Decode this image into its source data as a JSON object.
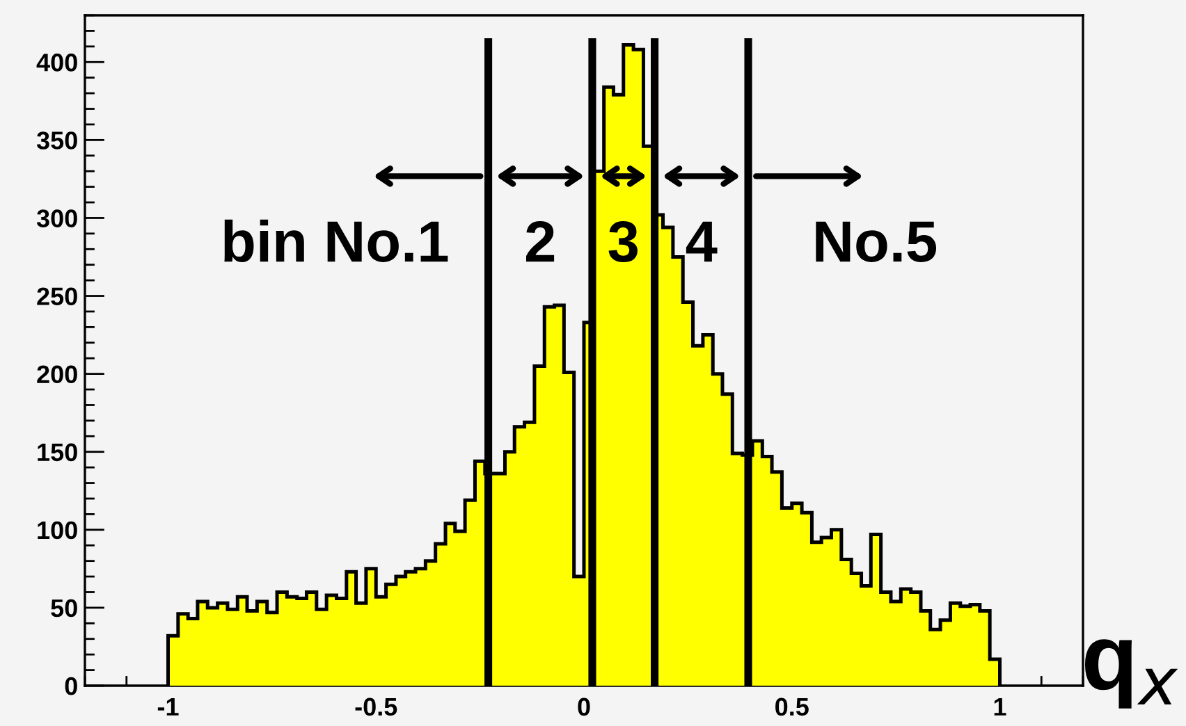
{
  "chart_data": {
    "type": "histogram",
    "xlabel": "q$_{x}$",
    "bins": [
      -1,
      -0.976,
      -0.952,
      -0.929,
      -0.905,
      -0.881,
      -0.857,
      -0.833,
      -0.81,
      -0.786,
      -0.762,
      -0.738,
      -0.714,
      -0.69,
      -0.667,
      -0.643,
      -0.619,
      -0.595,
      -0.571,
      -0.548,
      -0.524,
      -0.5,
      -0.476,
      -0.452,
      -0.429,
      -0.405,
      -0.381,
      -0.357,
      -0.333,
      -0.31,
      -0.286,
      -0.262,
      -0.238,
      -0.214,
      -0.19,
      -0.167,
      -0.143,
      -0.119,
      -0.095,
      -0.071,
      -0.048,
      -0.024,
      0,
      0.024,
      0.048,
      0.071,
      0.095,
      0.119,
      0.143,
      0.167,
      0.19,
      0.214,
      0.238,
      0.262,
      0.286,
      0.31,
      0.333,
      0.357,
      0.381,
      0.405,
      0.429,
      0.452,
      0.476,
      0.5,
      0.524,
      0.548,
      0.571,
      0.595,
      0.619,
      0.643,
      0.667,
      0.69,
      0.714,
      0.738,
      0.762,
      0.786,
      0.81,
      0.833,
      0.857,
      0.881,
      0.905,
      0.929,
      0.952,
      0.976,
      1
    ],
    "values": [
      32,
      46,
      43,
      54,
      50,
      53,
      49,
      57,
      48,
      54,
      47,
      60,
      57,
      56,
      60,
      49,
      58,
      56,
      73,
      53,
      75,
      57,
      65,
      70,
      73,
      75,
      80,
      91,
      104,
      99,
      119,
      144,
      136,
      136,
      150,
      166,
      169,
      205,
      243,
      244,
      201,
      70,
      233,
      330,
      384,
      379,
      411,
      408,
      346,
      302,
      294,
      275,
      246,
      218,
      225,
      200,
      187,
      149,
      148,
      157,
      147,
      137,
      114,
      117,
      111,
      92,
      95,
      100,
      81,
      72,
      64,
      97,
      60,
      54,
      62,
      60,
      48,
      36,
      42,
      53,
      51,
      52,
      48,
      17
    ],
    "color": "#ffff00",
    "xlim": [
      -1.2,
      1.2
    ],
    "ylim": [
      0,
      430
    ],
    "xticks": [
      -1,
      -0.5,
      0,
      0.5,
      1
    ],
    "yticks": [
      0,
      50,
      100,
      150,
      200,
      250,
      300,
      350,
      400
    ],
    "ref_lines": [
      {
        "axis": "x",
        "value": -0.23,
        "color": "#000000"
      },
      {
        "axis": "x",
        "value": 0.02,
        "color": "#000000"
      },
      {
        "axis": "x",
        "value": 0.17,
        "color": "#000000"
      },
      {
        "axis": "x",
        "value": 0.395,
        "color": "#000000"
      }
    ],
    "annotations": [
      "bin No.1",
      "2",
      "3",
      "4",
      "No.5"
    ],
    "grid": false,
    "legend": false
  }
}
